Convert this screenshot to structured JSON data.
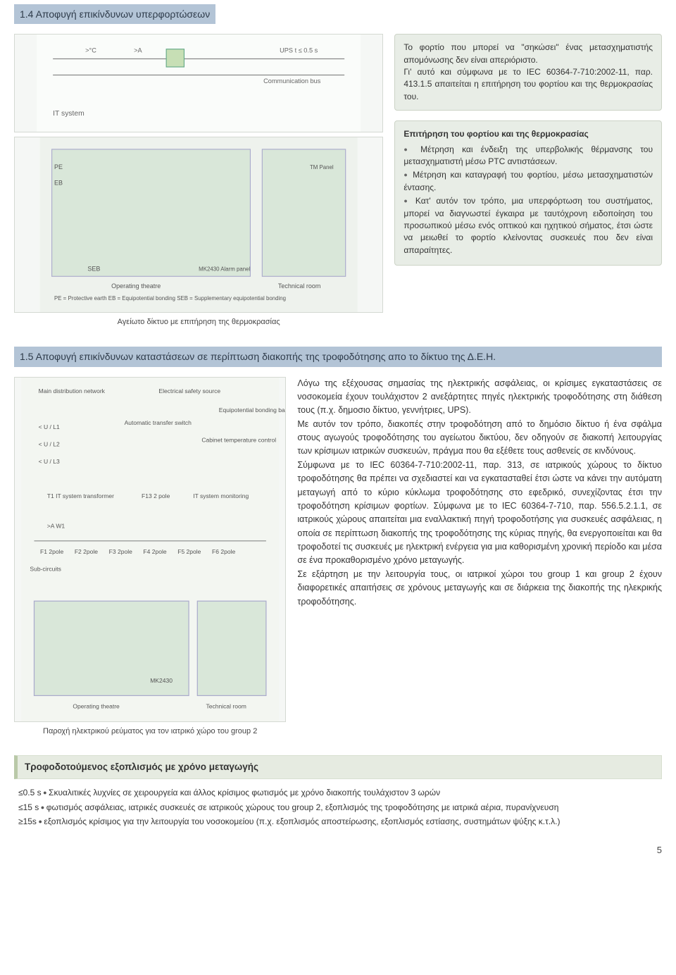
{
  "section14": {
    "title": "1.4 Αποφυγή επικίνδυνων υπερφορτώσεων",
    "diagram1_caption": "Αγείωτο δίκτυο με επιτήρηση της θερμοκρασίας",
    "box1_text": "Το φορτίο που μπορεί να \"σηκώσει\" ένας μετασχηματιστής απομόνωσης δεν είναι απεριόριστο.\nΓι' αυτό και σύμφωνα με το IEC 60364-7-710:2002-11, παρ. 413.1.5 απαιτείται η επιτήρηση του φορτίου και της θερμοκρασίας του.",
    "box2_title": "Επιτήρηση του φορτίου και της θερμοκρασίας",
    "box2_items": [
      "Μέτρηση και ένδειξη της υπερβολικής θέρμανσης του μετασχηματιστή μέσω PTC αντιστάσεων.",
      "Μέτρηση και καταγραφή του φορτίου, μέσω μετασχηματιστών έντασης.",
      "Κατ' αυτόν τον τρόπο, μια υπερφόρτωση του συστήματος, μπορεί να διαγνωστεί έγκαιρα με ταυτόχρονη ειδοποίηση του προσωπικού μέσω ενός οπτικού και ηχητικού σήματος, έτσι ώστε να μειωθεί το φορτίο κλείνοντας συσκευές που δεν είναι απαραίτητες."
    ]
  },
  "section15": {
    "title": "1.5 Αποφυγή επικίνδυνων καταστάσεων σε περίπτωση διακοπής της τροφοδότησης απο το δίκτυο της Δ.Ε.Η.",
    "diagram2_caption": "Παροχή ηλεκτρικού ρεύματος για τον ιατρικό χώρο του group 2",
    "body": "Λόγω της εξέχουσας σημασίας της ηλεκτρικής ασφάλειας, οι κρίσιμες εγκαταστάσεις σε νοσοκομεία έχουν τουλάχιστον 2 ανεξάρτητες πηγές ηλεκτρικής τροφοδότησης στη διάθεση τους (π.χ. δημοσιο δίκτυο, γεννήτριες, UPS).\nΜε αυτόν τον τρόπο, διακοπές στην τροφοδότηση από το δημόσιο δίκτυο ή ένα σφάλμα στους αγωγούς τροφοδότησης του αγείωτου δικτύου, δεν οδηγούν σε διακοπή λειτουργίας των κρίσιμων ιατρικών συσκευών, πράγμα που θα εξέθετε τους ασθενείς σε κινδύνους.\nΣύμφωνα με το IEC 60364-7-710:2002-11, παρ. 313, σε ιατρικούς χώρους το δίκτυο τροφοδότησης θα πρέπει να σχεδιαστεί και να εγκατασταθεί έτσι ώστε να κάνει την αυτόματη μεταγωγή από το κύριο κύκλωμα τροφοδότησης στο εφεδρικό, συνεχίζοντας έτσι την τροφοδότηση κρίσιμων φορτίων. Σύμφωνα με το IEC 60364-7-710, παρ. 556.5.2.1.1, σε ιατρικούς χώρους απαιτείται μια εναλλακτική πηγή τροφοδοτήσης για συσκευές ασφάλειας, η οποία σε περίπτωση διακοπής της τροφοδότησης της κύριας πηγής, θα ενεργοποιείται και θα τροφοδοτεί τις συσκευές με ηλεκτρική ενέργεια για μια καθορισμένη χρονική περίοδο και μέσα σε ένα προκαθορισμένο χρόνο μεταγωγής.\nΣε εξάρτηση με την λειτουργία τους, οι ιατρικοί χώροι του group 1 και group 2 έχουν διαφορετικές απαιτήσεις σε χρόνους μεταγωγής και σε διάρκεια της διακοπής της ηλεκρικής τροφοδότησης."
  },
  "equipment": {
    "title": "Τροφοδοτούμενος εξοπλισμός με χρόνο μεταγωγής",
    "items": [
      {
        "lead": "≤0.5 s",
        "text": "Σκυαλιτικές λυχνίες σε χειρουργεία και άλλος κρίσιμος φωτισμός με χρόνο διακοπής τουλάχιστον 3 ωρών"
      },
      {
        "lead": "≤15 s",
        "text": "φωτισμός ασφάλειας, ιατρικές συσκευές σε ιατρικούς χώρους του group 2, εξοπλισμός της τροφοδότησης με ιατρικά αέρια, πυρανίχνευση"
      },
      {
        "lead": "≥15s",
        "text": "εξοπλισμός κρίσιμος για την λειτουργία του νοσοκομείου (π.χ. εξοπλισμός αποστείρωσης, εξοπλισμός εστίασης, συστημάτων ψύξης κ.τ.λ.)"
      }
    ]
  },
  "pagenum": "5",
  "colors": {
    "title_bg": "#b3c4d6",
    "box_bg": "#e8ede6",
    "subsection_bg": "#e6ebe1",
    "subsection_border": "#b9c9a8"
  }
}
